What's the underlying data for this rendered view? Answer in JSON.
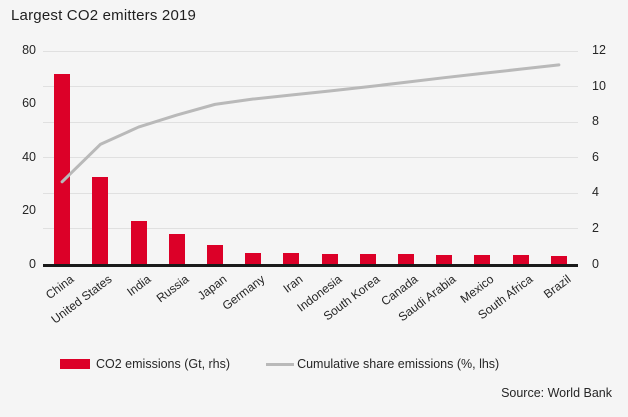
{
  "title": "Largest CO2 emitters 2019",
  "source": "Source: World Bank",
  "legend": {
    "bar_label": "CO2 emissions (Gt, rhs)",
    "line_label": "Cumulative share emissions (%, lhs)"
  },
  "colors": {
    "bar": "#dc0028",
    "line": "#b9b9b9",
    "grid": "#e0e0e0",
    "axis": "#1a1a1a",
    "background": "#f5f5f5",
    "text": "#262626"
  },
  "chart_data": {
    "type": "bar",
    "subtype": "pareto-combo (bars + cumulative line)",
    "title": "Largest CO2 emitters 2019",
    "categories": [
      "China",
      "United States",
      "India",
      "Russia",
      "Japan",
      "Germany",
      "Iran",
      "Indonesia",
      "South Korea",
      "Canada",
      "Saudi Arabia",
      "Mexico",
      "South Africa",
      "Brazil"
    ],
    "series": [
      {
        "name": "CO2 emissions (Gt, rhs)",
        "type": "bar",
        "axis": "right",
        "values": [
          10.7,
          4.9,
          2.45,
          1.7,
          1.1,
          0.66,
          0.62,
          0.6,
          0.6,
          0.58,
          0.56,
          0.54,
          0.52,
          0.5
        ]
      },
      {
        "name": "Cumulative share emissions (%, lhs)",
        "type": "line",
        "axis": "left",
        "values": [
          31,
          45,
          51.5,
          56,
          60,
          62,
          63.5,
          65,
          66.6,
          68.3,
          70,
          71.6,
          73.2,
          74.8
        ]
      }
    ],
    "left_axis": {
      "label": "Cumulative share emissions (%)",
      "ticks": [
        0,
        20,
        40,
        60,
        80
      ],
      "range": [
        0,
        80
      ]
    },
    "right_axis": {
      "label": "CO2 emissions (Gt)",
      "ticks": [
        0,
        2,
        4,
        6,
        8,
        10,
        12
      ],
      "range": [
        0,
        12
      ]
    },
    "grid": true,
    "legend_position": "bottom",
    "source": "Source: World Bank"
  }
}
